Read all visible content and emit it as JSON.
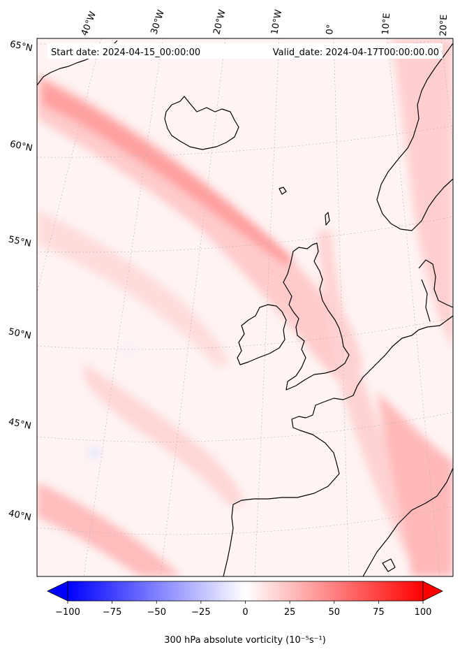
{
  "header": {
    "start_date": "Start date: 2024-04-15_00:00:00",
    "valid_date": "Valid_date: 2024-04-17T00:00:00.00"
  },
  "map": {
    "lat_labels": [
      "65°N",
      "60°N",
      "55°N",
      "50°N",
      "45°N",
      "40°N"
    ],
    "lon_labels": [
      "40°W",
      "30°W",
      "20°W",
      "10°W",
      "0°",
      "10°E",
      "20°E"
    ],
    "field_colors": {
      "background": "#fff3f3",
      "weak": "#ffdcdc",
      "moderate": "#ffc4c4",
      "strong": "#ff9a9a",
      "negative": "#eef2ff"
    },
    "coastline_color": "#000000"
  },
  "colorbar": {
    "label": "300 hPa absolute vorticity (10⁻⁵s⁻¹)",
    "ticks": [
      "−100",
      "−75",
      "−50",
      "−25",
      "0",
      "25",
      "50",
      "75",
      "100"
    ],
    "min": -100,
    "max": 100,
    "min_color": "#0000ff",
    "mid_color": "#ffffff",
    "max_color": "#ff0000",
    "extend": "both"
  }
}
